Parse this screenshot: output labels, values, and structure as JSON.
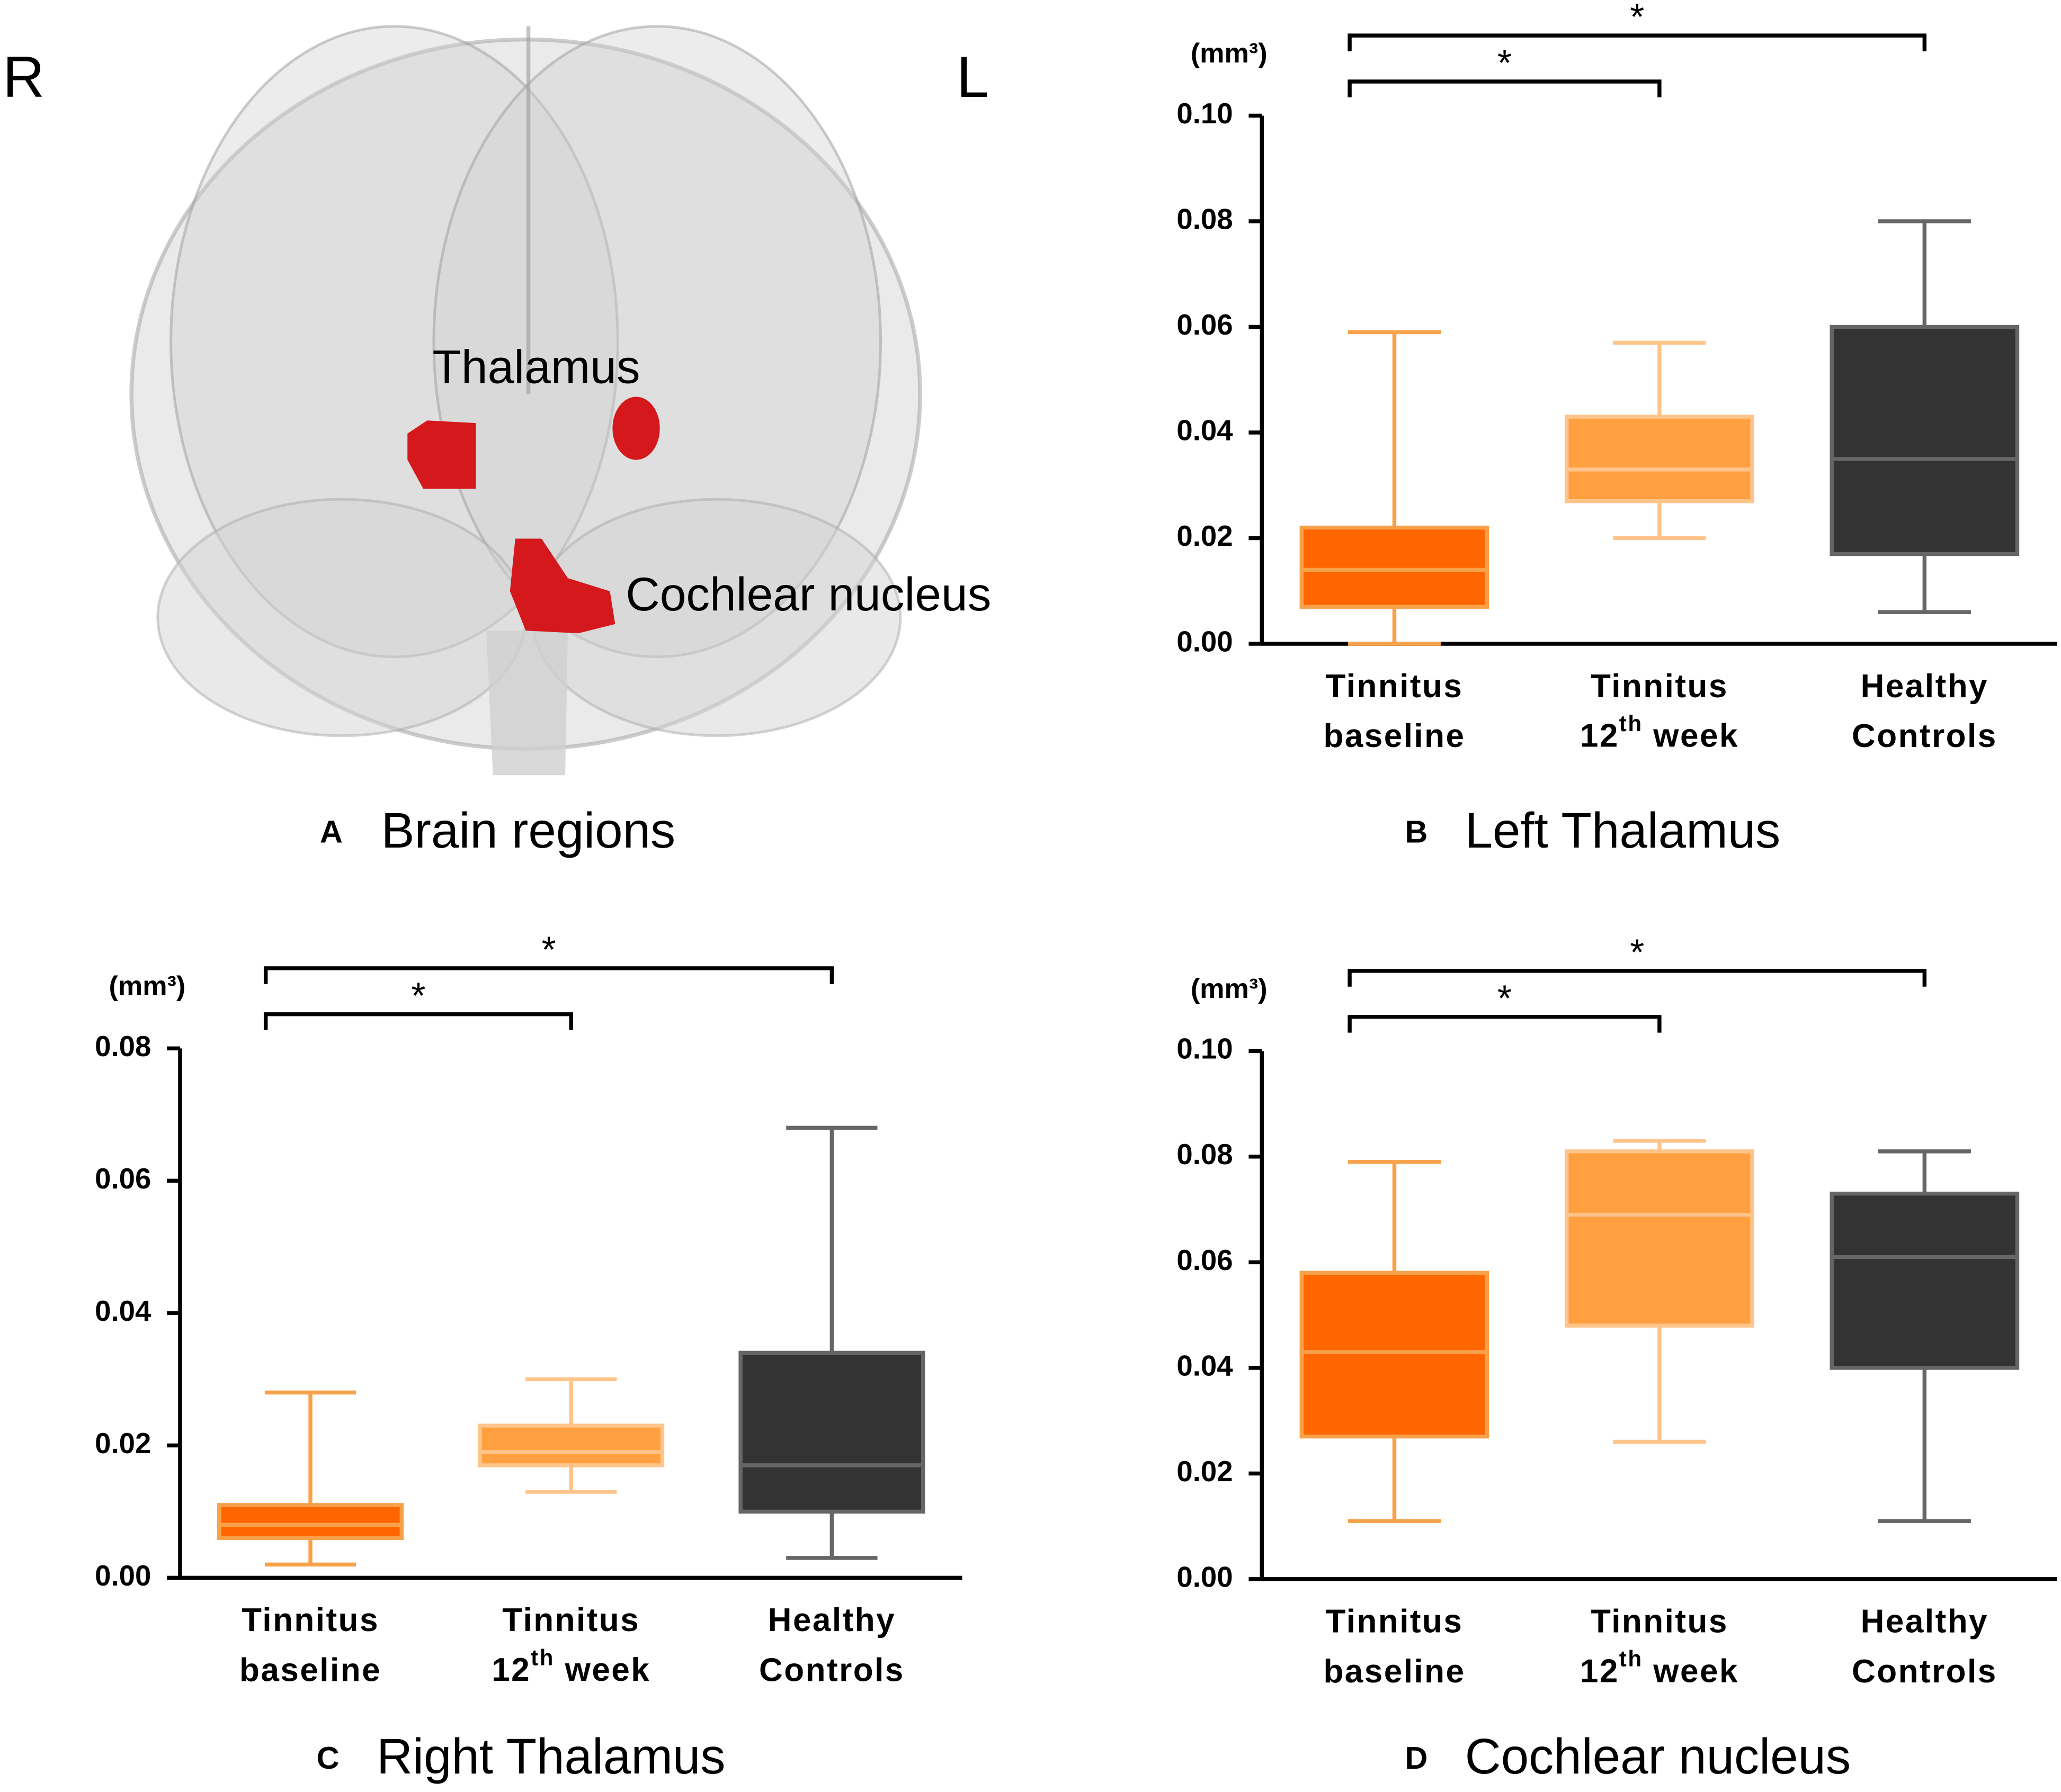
{
  "figure_a": {
    "left_label": "R",
    "right_label": "L",
    "regions": [
      "Thalamus",
      "Cochlear nucleus"
    ],
    "panel": "A",
    "title": "Brain regions"
  },
  "chart_data": [
    {
      "type": "box",
      "panel": "B",
      "title": "Left  Thalamus",
      "unit": "(mm³)",
      "categories": [
        [
          "Tinnitus",
          "baseline"
        ],
        [
          "Tinnitus",
          [
            "12",
            "th",
            " week"
          ]
        ],
        [
          "Healthy",
          "Controls"
        ]
      ],
      "boxes": [
        {
          "min": 0.0,
          "q1": 0.007,
          "median": 0.014,
          "q3": 0.022,
          "max": 0.059,
          "color": "#ff6600",
          "line_color": "#f7a24a"
        },
        {
          "min": 0.02,
          "q1": 0.027,
          "median": 0.033,
          "q3": 0.043,
          "max": 0.057,
          "color": "#ffa040",
          "line_color": "#ffc48a"
        },
        {
          "min": 0.006,
          "q1": 0.017,
          "median": 0.035,
          "q3": 0.06,
          "max": 0.08,
          "color": "#333333",
          "line_color": "#666666"
        }
      ],
      "ylim": [
        0,
        0.1
      ],
      "yticks": [
        {
          "value": 0,
          "label": "0.00"
        },
        {
          "value": 0.02,
          "label": "0.02"
        },
        {
          "value": 0.04,
          "label": "0.04"
        },
        {
          "value": 0.06,
          "label": "0.06"
        },
        {
          "value": 0.08,
          "label": "0.08"
        },
        {
          "value": 0.1,
          "label": "0.10"
        }
      ],
      "brackets": [
        {
          "from": 0,
          "to": 1,
          "label": "*"
        },
        {
          "from": 0,
          "to": 2,
          "label": "*"
        }
      ]
    },
    {
      "type": "box",
      "panel": "C",
      "title": "Right Thalamus",
      "unit": "(mm³)",
      "categories": [
        [
          "Tinnitus",
          "baseline"
        ],
        [
          "Tinnitus",
          [
            "12",
            "th",
            " week"
          ]
        ],
        [
          "Healthy",
          "Controls"
        ]
      ],
      "boxes": [
        {
          "min": 0.002,
          "q1": 0.006,
          "median": 0.008,
          "q3": 0.011,
          "max": 0.028,
          "color": "#ff6600",
          "line_color": "#f7a24a"
        },
        {
          "min": 0.013,
          "q1": 0.017,
          "median": 0.019,
          "q3": 0.023,
          "max": 0.03,
          "color": "#ffa040",
          "line_color": "#ffc48a"
        },
        {
          "min": 0.003,
          "q1": 0.01,
          "median": 0.017,
          "q3": 0.034,
          "max": 0.068,
          "color": "#333333",
          "line_color": "#666666"
        }
      ],
      "ylim": [
        0,
        0.08
      ],
      "yticks": [
        {
          "value": 0,
          "label": "0.00"
        },
        {
          "value": 0.02,
          "label": "0.02"
        },
        {
          "value": 0.04,
          "label": "0.04"
        },
        {
          "value": 0.06,
          "label": "0.06"
        },
        {
          "value": 0.08,
          "label": "0.08"
        }
      ],
      "brackets": [
        {
          "from": 0,
          "to": 1,
          "label": "*"
        },
        {
          "from": 0,
          "to": 2,
          "label": "*"
        }
      ]
    },
    {
      "type": "box",
      "panel": "D",
      "title": "Cochlear nucleus",
      "unit": "(mm³)",
      "categories": [
        [
          "Tinnitus",
          "baseline"
        ],
        [
          "Tinnitus",
          [
            "12",
            "th",
            " week"
          ]
        ],
        [
          "Healthy",
          "Controls"
        ]
      ],
      "boxes": [
        {
          "min": 0.011,
          "q1": 0.027,
          "median": 0.043,
          "q3": 0.058,
          "max": 0.079,
          "color": "#ff6600",
          "line_color": "#f7a24a"
        },
        {
          "min": 0.026,
          "q1": 0.048,
          "median": 0.069,
          "q3": 0.081,
          "max": 0.083,
          "color": "#ffa040",
          "line_color": "#ffc48a"
        },
        {
          "min": 0.011,
          "q1": 0.04,
          "median": 0.061,
          "q3": 0.073,
          "max": 0.081,
          "color": "#333333",
          "line_color": "#666666"
        }
      ],
      "ylim": [
        0,
        0.1
      ],
      "yticks": [
        {
          "value": 0,
          "label": "0.00"
        },
        {
          "value": 0.02,
          "label": "0.02"
        },
        {
          "value": 0.04,
          "label": "0.04"
        },
        {
          "value": 0.06,
          "label": "0.06"
        },
        {
          "value": 0.08,
          "label": "0.08"
        },
        {
          "value": 0.1,
          "label": "0.10"
        }
      ],
      "brackets": [
        {
          "from": 0,
          "to": 1,
          "label": "*"
        },
        {
          "from": 0,
          "to": 2,
          "label": "*"
        }
      ]
    }
  ]
}
